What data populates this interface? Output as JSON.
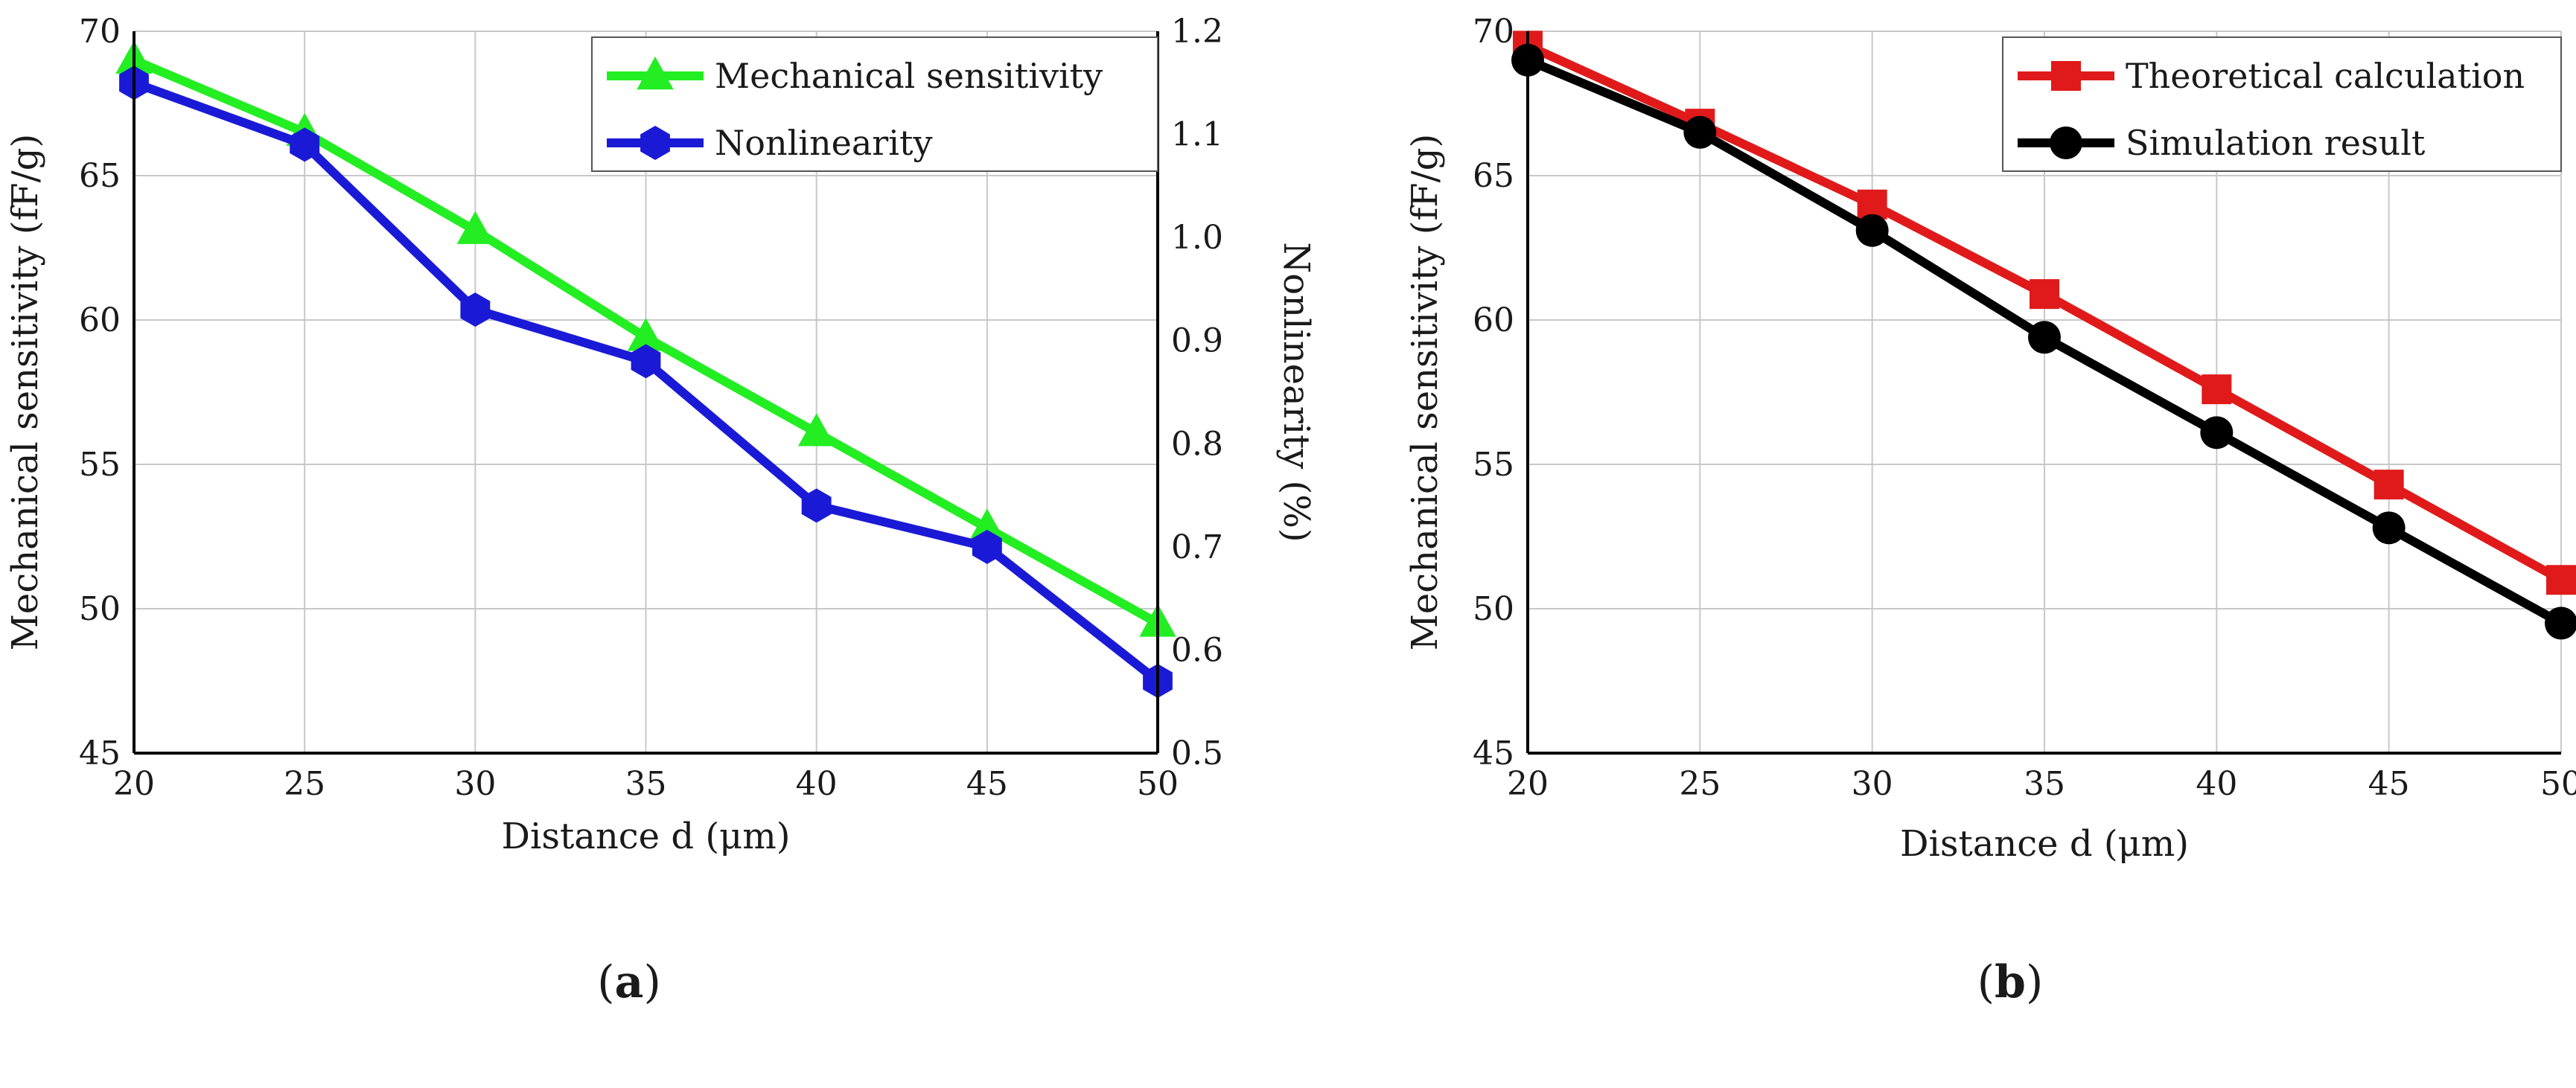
{
  "chart_data": [
    {
      "type": "line",
      "panel_label_open": "(",
      "panel_label_letter": "a",
      "panel_label_close": ")",
      "xlabel": "Distance d (μm)",
      "ylabel": "Mechanical sensitivity (fF/g)",
      "y2label": "Nonlinearity (%)",
      "x": [
        20,
        25,
        30,
        35,
        40,
        45,
        50
      ],
      "xlim": [
        20,
        50
      ],
      "ylim": [
        45,
        70
      ],
      "y2lim": [
        0.5,
        1.2
      ],
      "xticks": [
        "20",
        "25",
        "30",
        "35",
        "40",
        "45",
        "50"
      ],
      "yticks": [
        "45",
        "50",
        "55",
        "60",
        "65",
        "70"
      ],
      "y2ticks": [
        "0.5",
        "0.6",
        "0.7",
        "0.8",
        "0.9",
        "1.0",
        "1.1",
        "1.2"
      ],
      "grid": true,
      "legend_position": "top-right",
      "series": [
        {
          "name": "Mechanical sensitivity",
          "axis": "left",
          "color": "#22ee22",
          "marker": "triangle",
          "values": [
            69.0,
            66.5,
            63.1,
            59.4,
            56.1,
            52.8,
            49.5
          ]
        },
        {
          "name": "Nonlinearity",
          "axis": "right",
          "color": "#1a1ad6",
          "marker": "hexagon",
          "values": [
            1.15,
            1.09,
            0.93,
            0.88,
            0.74,
            0.7,
            0.57
          ]
        }
      ]
    },
    {
      "type": "line",
      "panel_label_open": "(",
      "panel_label_letter": "b",
      "panel_label_close": ")",
      "xlabel": "Distance d (μm)",
      "ylabel": "Mechanical sensitivity (fF/g)",
      "x": [
        20,
        25,
        30,
        35,
        40,
        45,
        50
      ],
      "xlim": [
        20,
        50
      ],
      "ylim": [
        45,
        70
      ],
      "xticks": [
        "20",
        "25",
        "30",
        "35",
        "40",
        "45",
        "50"
      ],
      "yticks": [
        "45",
        "50",
        "55",
        "60",
        "65",
        "70"
      ],
      "grid": true,
      "legend_position": "top-right",
      "series": [
        {
          "name": "Theoretical calculation",
          "axis": "left",
          "color": "#e01a1a",
          "marker": "square",
          "values": [
            69.5,
            66.8,
            64.0,
            60.9,
            57.6,
            54.3,
            51.0
          ]
        },
        {
          "name": "Simulation result",
          "axis": "left",
          "color": "#000000",
          "marker": "circle",
          "values": [
            69.0,
            66.5,
            63.1,
            59.4,
            56.1,
            52.8,
            49.5
          ]
        }
      ]
    }
  ]
}
